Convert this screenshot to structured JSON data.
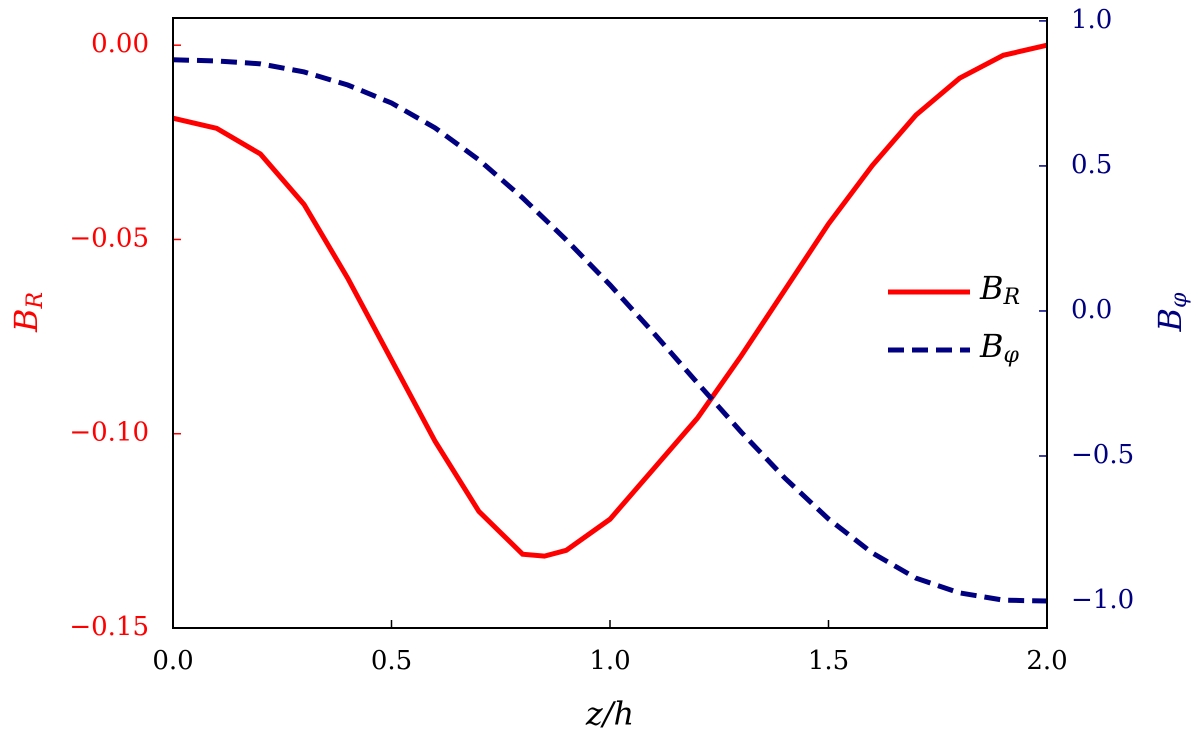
{
  "chart_data": {
    "type": "line",
    "xlabel": {
      "base": "z/h"
    },
    "ylabel": {
      "base": "B",
      "subscript": "R"
    },
    "y2label": {
      "base": "B",
      "subscript": "φ"
    },
    "x": [
      0,
      0.1,
      0.2,
      0.3,
      0.4,
      0.5,
      0.6,
      0.7,
      0.8,
      0.85,
      0.9,
      1.0,
      1.1,
      1.2,
      1.3,
      1.4,
      1.5,
      1.6,
      1.7,
      1.8,
      1.9,
      2.0
    ],
    "series": [
      {
        "name": {
          "base": "B",
          "subscript": "R"
        },
        "color": "#ff0000",
        "dash": false,
        "x": [
          0,
          0.1,
          0.2,
          0.3,
          0.4,
          0.5,
          0.6,
          0.7,
          0.8,
          0.85,
          0.9,
          1.0,
          1.1,
          1.2,
          1.3,
          1.4,
          1.5,
          1.6,
          1.7,
          1.8,
          1.9,
          2.0
        ],
        "values": [
          -0.0188,
          -0.0214,
          -0.028,
          -0.041,
          -0.06,
          -0.081,
          -0.102,
          -0.12,
          -0.131,
          -0.1315,
          -0.13,
          -0.122,
          -0.109,
          -0.096,
          -0.08,
          -0.063,
          -0.046,
          -0.031,
          -0.018,
          -0.0085,
          -0.0026,
          0.0
        ]
      },
      {
        "name": {
          "base": "B",
          "subscript": "φ"
        },
        "color": "#000080",
        "dash": true,
        "axis": "y2",
        "x": [
          0,
          0.1,
          0.2,
          0.3,
          0.4,
          0.5,
          0.6,
          0.7,
          0.8,
          0.9,
          1.0,
          1.1,
          1.2,
          1.3,
          1.4,
          1.5,
          1.6,
          1.7,
          1.8,
          1.9,
          2.0
        ],
        "values": [
          0.866,
          0.862,
          0.852,
          0.824,
          0.779,
          0.717,
          0.631,
          0.521,
          0.39,
          0.245,
          0.09,
          -0.076,
          -0.248,
          -0.417,
          -0.576,
          -0.717,
          -0.834,
          -0.921,
          -0.972,
          -0.997,
          -1.0
        ]
      }
    ],
    "xlim": [
      0,
      2
    ],
    "xticks": [
      {
        "value": 0,
        "label": "0.0"
      },
      {
        "value": 0.5,
        "label": "0.5"
      },
      {
        "value": 1,
        "label": "1.0"
      },
      {
        "value": 1.5,
        "label": "1.5"
      },
      {
        "value": 2,
        "label": "2.0"
      }
    ],
    "ylim": [
      -0.15,
      0.007
    ],
    "yticks": [
      {
        "value": -0.15,
        "label": "−0.15"
      },
      {
        "value": -0.1,
        "label": "−0.10"
      },
      {
        "value": -0.05,
        "label": "−0.05"
      },
      {
        "value": 0,
        "label": "0.00"
      }
    ],
    "y2lim": [
      -1.093,
      1.01
    ],
    "y2ticks": [
      {
        "value": -1,
        "label": "−1.0"
      },
      {
        "value": -0.5,
        "label": "−0.5"
      },
      {
        "value": 0,
        "label": "0.0"
      },
      {
        "value": 0.5,
        "label": "0.5"
      },
      {
        "value": 1,
        "label": "1.0"
      }
    ],
    "ycolor": "#ff0000",
    "y2color": "#000080",
    "legend": "center right",
    "grid": false
  }
}
